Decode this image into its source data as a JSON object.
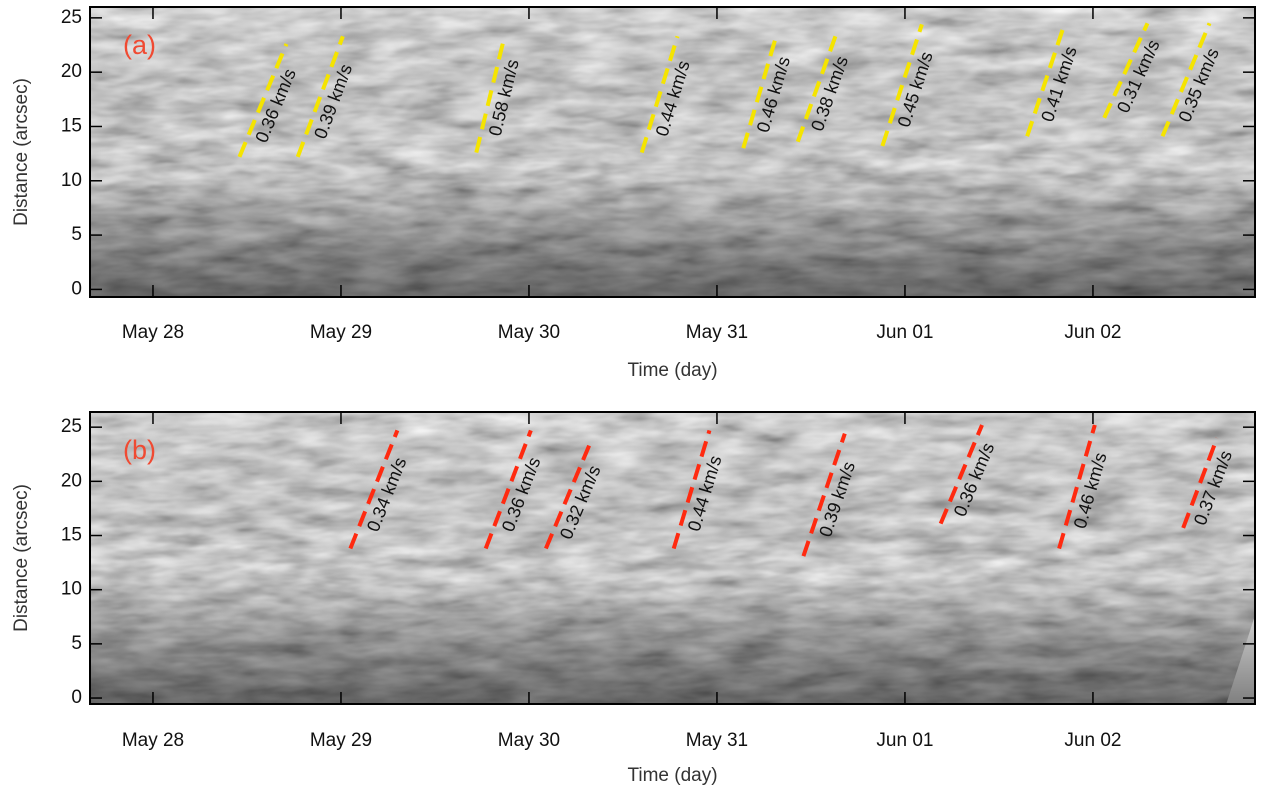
{
  "chart_data": [
    {
      "type": "line",
      "panel_label": "(a)",
      "xlabel": "Time (day)",
      "ylabel": "Distance (arcsec)",
      "xlim": [
        27.665,
        33.862
      ],
      "xticks": [
        {
          "value": 28,
          "label": "May 28"
        },
        {
          "value": 29,
          "label": "May 29"
        },
        {
          "value": 30,
          "label": "May 30"
        },
        {
          "value": 31,
          "label": "May 31"
        },
        {
          "value": 32,
          "label": "Jun 01"
        },
        {
          "value": 33,
          "label": "Jun 02"
        }
      ],
      "ylim": [
        -0.7,
        26.0
      ],
      "yticks": [
        0,
        5,
        10,
        15,
        20,
        25
      ],
      "dashed": true,
      "series": [
        {
          "name": "0.36 km/s",
          "color": "#f5e400",
          "x": [
            28.46,
            28.71
          ],
          "values": [
            12.2,
            22.6
          ]
        },
        {
          "name": "0.39 km/s",
          "color": "#f5e400",
          "x": [
            28.77,
            29.01
          ],
          "values": [
            12.2,
            23.3
          ]
        },
        {
          "name": "0.58 km/s",
          "color": "#f5e400",
          "x": [
            29.72,
            29.87
          ],
          "values": [
            12.6,
            23.3
          ]
        },
        {
          "name": "0.44 km/s",
          "color": "#f5e400",
          "x": [
            30.6,
            30.79
          ],
          "values": [
            12.6,
            23.3
          ]
        },
        {
          "name": "0.46 km/s",
          "color": "#f5e400",
          "x": [
            31.14,
            31.32
          ],
          "values": [
            13.0,
            23.6
          ]
        },
        {
          "name": "0.38 km/s",
          "color": "#f5e400",
          "x": [
            31.43,
            31.63
          ],
          "values": [
            13.6,
            23.3
          ]
        },
        {
          "name": "0.45 km/s",
          "color": "#f5e400",
          "x": [
            31.88,
            32.09
          ],
          "values": [
            13.2,
            24.4
          ]
        },
        {
          "name": "0.41 km/s",
          "color": "#f5e400",
          "x": [
            32.65,
            32.85
          ],
          "values": [
            14.1,
            24.5
          ]
        },
        {
          "name": "0.31 km/s",
          "color": "#f5e400",
          "x": [
            33.06,
            33.29
          ],
          "values": [
            15.8,
            24.5
          ]
        },
        {
          "name": "0.35 km/s",
          "color": "#f5e400",
          "x": [
            33.37,
            33.62
          ],
          "values": [
            14.1,
            24.5
          ]
        }
      ]
    },
    {
      "type": "line",
      "panel_label": "(b)",
      "xlabel": "Time (day)",
      "ylabel": "Distance (arcsec)",
      "xlim": [
        27.665,
        33.862
      ],
      "xticks": [
        {
          "value": 28,
          "label": "May 28"
        },
        {
          "value": 29,
          "label": "May 29"
        },
        {
          "value": 30,
          "label": "May 30"
        },
        {
          "value": 31,
          "label": "May 31"
        },
        {
          "value": 32,
          "label": "Jun 01"
        },
        {
          "value": 33,
          "label": "Jun 02"
        }
      ],
      "ylim": [
        -0.55,
        26.4
      ],
      "yticks": [
        0,
        5,
        10,
        15,
        20,
        25
      ],
      "dashed": true,
      "series": [
        {
          "name": "0.34 km/s",
          "color": "#ff2a10",
          "x": [
            29.05,
            29.3
          ],
          "values": [
            13.8,
            24.7
          ]
        },
        {
          "name": "0.36 km/s",
          "color": "#ff2a10",
          "x": [
            29.77,
            30.01
          ],
          "values": [
            13.8,
            24.7
          ]
        },
        {
          "name": "0.32 km/s",
          "color": "#ff2a10",
          "x": [
            30.09,
            30.32
          ],
          "values": [
            13.8,
            23.3
          ]
        },
        {
          "name": "0.44 km/s",
          "color": "#ff2a10",
          "x": [
            30.77,
            30.96
          ],
          "values": [
            13.8,
            24.7
          ]
        },
        {
          "name": "0.39 km/s",
          "color": "#ff2a10",
          "x": [
            31.46,
            31.68
          ],
          "values": [
            13.1,
            24.4
          ]
        },
        {
          "name": "0.36 km/s",
          "color": "#ff2a10",
          "x": [
            32.19,
            32.41
          ],
          "values": [
            16.1,
            25.2
          ]
        },
        {
          "name": "0.46 km/s",
          "color": "#ff2a10",
          "x": [
            32.82,
            33.01
          ],
          "values": [
            13.8,
            25.2
          ]
        },
        {
          "name": "0.37 km/s",
          "color": "#ff2a10",
          "x": [
            33.48,
            33.66
          ],
          "values": [
            15.7,
            24.0
          ]
        }
      ]
    }
  ]
}
